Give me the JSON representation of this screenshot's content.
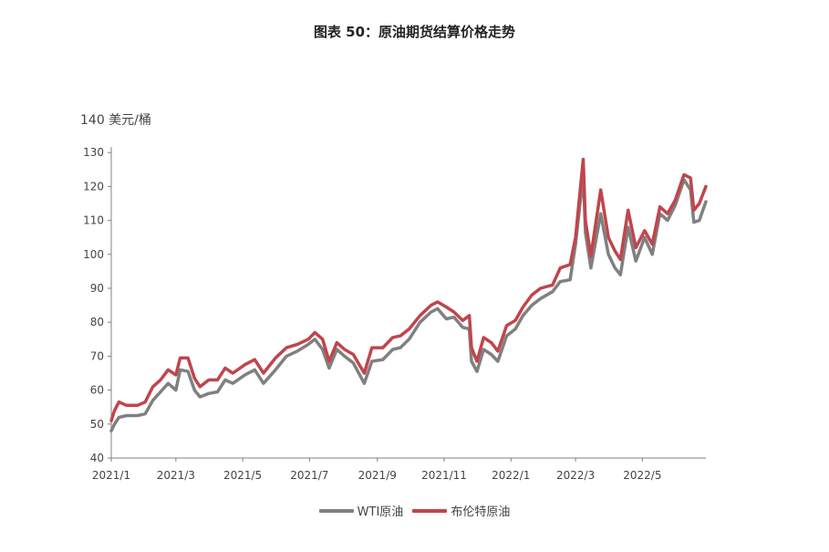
{
  "title": "图表 50：原油期货结算价格走势",
  "colors": {
    "wti": "#808080",
    "brent": "#c0454c",
    "axis": "#808080"
  },
  "chart_data": {
    "type": "line",
    "title": "图表 50：原油期货结算价格走势",
    "ylabel": "140 美元/桶",
    "xlabel": "",
    "ylim": [
      40,
      140
    ],
    "yticks": [
      40,
      50,
      60,
      70,
      80,
      90,
      100,
      110,
      120,
      130
    ],
    "xlim": [
      "2021-01-01",
      "2022-06-28"
    ],
    "xtick_labels": [
      "2021/1",
      "2021/3",
      "2021/5",
      "2021/7",
      "2021/9",
      "2021/11",
      "2022/1",
      "2022/3",
      "2022/5"
    ],
    "xtick_dates": [
      "2021-01-01",
      "2021-03-01",
      "2021-05-01",
      "2021-07-01",
      "2021-09-01",
      "2021-11-01",
      "2022-01-01",
      "2022-03-01",
      "2022-05-01"
    ],
    "grid": false,
    "legend": "bottom",
    "series": [
      {
        "name": "WTI原油",
        "color": "#808080",
        "points": [
          [
            "2021-01-01",
            48
          ],
          [
            "2021-01-04",
            50
          ],
          [
            "2021-01-08",
            52
          ],
          [
            "2021-01-15",
            52.5
          ],
          [
            "2021-01-25",
            52.5
          ],
          [
            "2021-02-01",
            53
          ],
          [
            "2021-02-08",
            57
          ],
          [
            "2021-02-15",
            59.5
          ],
          [
            "2021-02-22",
            62
          ],
          [
            "2021-03-01",
            60
          ],
          [
            "2021-03-05",
            66
          ],
          [
            "2021-03-12",
            65.5
          ],
          [
            "2021-03-18",
            60
          ],
          [
            "2021-03-23",
            58
          ],
          [
            "2021-03-31",
            59
          ],
          [
            "2021-04-08",
            59.5
          ],
          [
            "2021-04-15",
            63
          ],
          [
            "2021-04-22",
            62
          ],
          [
            "2021-05-03",
            64.5
          ],
          [
            "2021-05-12",
            66
          ],
          [
            "2021-05-20",
            62
          ],
          [
            "2021-05-31",
            66
          ],
          [
            "2021-06-10",
            70
          ],
          [
            "2021-06-20",
            71.5
          ],
          [
            "2021-06-30",
            73.5
          ],
          [
            "2021-07-06",
            75
          ],
          [
            "2021-07-13",
            72
          ],
          [
            "2021-07-19",
            66.5
          ],
          [
            "2021-07-26",
            72
          ],
          [
            "2021-08-02",
            70
          ],
          [
            "2021-08-10",
            68
          ],
          [
            "2021-08-20",
            62
          ],
          [
            "2021-08-27",
            68.5
          ],
          [
            "2021-09-06",
            69
          ],
          [
            "2021-09-15",
            72
          ],
          [
            "2021-09-22",
            72.5
          ],
          [
            "2021-09-30",
            75
          ],
          [
            "2021-10-10",
            80
          ],
          [
            "2021-10-20",
            83
          ],
          [
            "2021-10-26",
            84
          ],
          [
            "2021-11-03",
            81
          ],
          [
            "2021-11-10",
            81.5
          ],
          [
            "2021-11-18",
            78.5
          ],
          [
            "2021-11-24",
            78
          ],
          [
            "2021-11-26",
            68.5
          ],
          [
            "2021-12-01",
            65.5
          ],
          [
            "2021-12-07",
            72
          ],
          [
            "2021-12-14",
            70.5
          ],
          [
            "2021-12-20",
            68.5
          ],
          [
            "2021-12-28",
            76
          ],
          [
            "2022-01-05",
            78
          ],
          [
            "2022-01-12",
            82
          ],
          [
            "2022-01-20",
            85
          ],
          [
            "2022-01-28",
            87
          ],
          [
            "2022-02-08",
            89
          ],
          [
            "2022-02-15",
            92
          ],
          [
            "2022-02-24",
            92.5
          ],
          [
            "2022-03-01",
            103
          ],
          [
            "2022-03-08",
            123.5
          ],
          [
            "2022-03-10",
            106.5
          ],
          [
            "2022-03-15",
            96
          ],
          [
            "2022-03-24",
            112
          ],
          [
            "2022-03-31",
            100
          ],
          [
            "2022-04-06",
            96
          ],
          [
            "2022-04-11",
            94
          ],
          [
            "2022-04-18",
            108
          ],
          [
            "2022-04-25",
            98
          ],
          [
            "2022-05-03",
            105
          ],
          [
            "2022-05-10",
            100
          ],
          [
            "2022-05-17",
            112
          ],
          [
            "2022-05-24",
            110
          ],
          [
            "2022-05-31",
            114.5
          ],
          [
            "2022-06-08",
            122
          ],
          [
            "2022-06-14",
            119
          ],
          [
            "2022-06-17",
            109.5
          ],
          [
            "2022-06-22",
            110
          ],
          [
            "2022-06-28",
            115.5
          ]
        ]
      },
      {
        "name": "布伦特原油",
        "color": "#c0454c",
        "points": [
          [
            "2021-01-01",
            51
          ],
          [
            "2021-01-04",
            54
          ],
          [
            "2021-01-08",
            56.5
          ],
          [
            "2021-01-15",
            55.5
          ],
          [
            "2021-01-25",
            55.5
          ],
          [
            "2021-02-01",
            56.5
          ],
          [
            "2021-02-08",
            61
          ],
          [
            "2021-02-15",
            63
          ],
          [
            "2021-02-22",
            66
          ],
          [
            "2021-03-01",
            64.5
          ],
          [
            "2021-03-05",
            69.5
          ],
          [
            "2021-03-12",
            69.5
          ],
          [
            "2021-03-18",
            63.5
          ],
          [
            "2021-03-23",
            61
          ],
          [
            "2021-03-31",
            63
          ],
          [
            "2021-04-08",
            63
          ],
          [
            "2021-04-15",
            66.5
          ],
          [
            "2021-04-22",
            65
          ],
          [
            "2021-05-03",
            67.5
          ],
          [
            "2021-05-12",
            69
          ],
          [
            "2021-05-20",
            65
          ],
          [
            "2021-05-31",
            69.5
          ],
          [
            "2021-06-10",
            72.5
          ],
          [
            "2021-06-20",
            73.5
          ],
          [
            "2021-06-30",
            75
          ],
          [
            "2021-07-06",
            77
          ],
          [
            "2021-07-13",
            75
          ],
          [
            "2021-07-19",
            68.5
          ],
          [
            "2021-07-26",
            74
          ],
          [
            "2021-08-02",
            72
          ],
          [
            "2021-08-10",
            70.5
          ],
          [
            "2021-08-20",
            65
          ],
          [
            "2021-08-27",
            72.5
          ],
          [
            "2021-09-06",
            72.5
          ],
          [
            "2021-09-15",
            75.5
          ],
          [
            "2021-09-22",
            76
          ],
          [
            "2021-09-30",
            78
          ],
          [
            "2021-10-10",
            82
          ],
          [
            "2021-10-20",
            85
          ],
          [
            "2021-10-26",
            86
          ],
          [
            "2021-11-03",
            84.5
          ],
          [
            "2021-11-10",
            83
          ],
          [
            "2021-11-18",
            80.5
          ],
          [
            "2021-11-24",
            82
          ],
          [
            "2021-11-26",
            72.5
          ],
          [
            "2021-12-01",
            68.5
          ],
          [
            "2021-12-07",
            75.5
          ],
          [
            "2021-12-14",
            74
          ],
          [
            "2021-12-20",
            71.5
          ],
          [
            "2021-12-28",
            79
          ],
          [
            "2022-01-05",
            80.5
          ],
          [
            "2022-01-12",
            84.5
          ],
          [
            "2022-01-20",
            88
          ],
          [
            "2022-01-28",
            90
          ],
          [
            "2022-02-08",
            91
          ],
          [
            "2022-02-15",
            96
          ],
          [
            "2022-02-24",
            97
          ],
          [
            "2022-03-01",
            105
          ],
          [
            "2022-03-08",
            128
          ],
          [
            "2022-03-10",
            110
          ],
          [
            "2022-03-15",
            99.5
          ],
          [
            "2022-03-24",
            119
          ],
          [
            "2022-03-31",
            105
          ],
          [
            "2022-04-06",
            101
          ],
          [
            "2022-04-11",
            98.5
          ],
          [
            "2022-04-18",
            113
          ],
          [
            "2022-04-25",
            102
          ],
          [
            "2022-05-03",
            107
          ],
          [
            "2022-05-10",
            103
          ],
          [
            "2022-05-17",
            114
          ],
          [
            "2022-05-24",
            112
          ],
          [
            "2022-05-31",
            116
          ],
          [
            "2022-06-08",
            123.5
          ],
          [
            "2022-06-14",
            122.5
          ],
          [
            "2022-06-17",
            113
          ],
          [
            "2022-06-22",
            115
          ],
          [
            "2022-06-28",
            120
          ]
        ]
      }
    ]
  },
  "legend": {
    "wti_label": "WTI原油",
    "brent_label": "布伦特原油"
  }
}
